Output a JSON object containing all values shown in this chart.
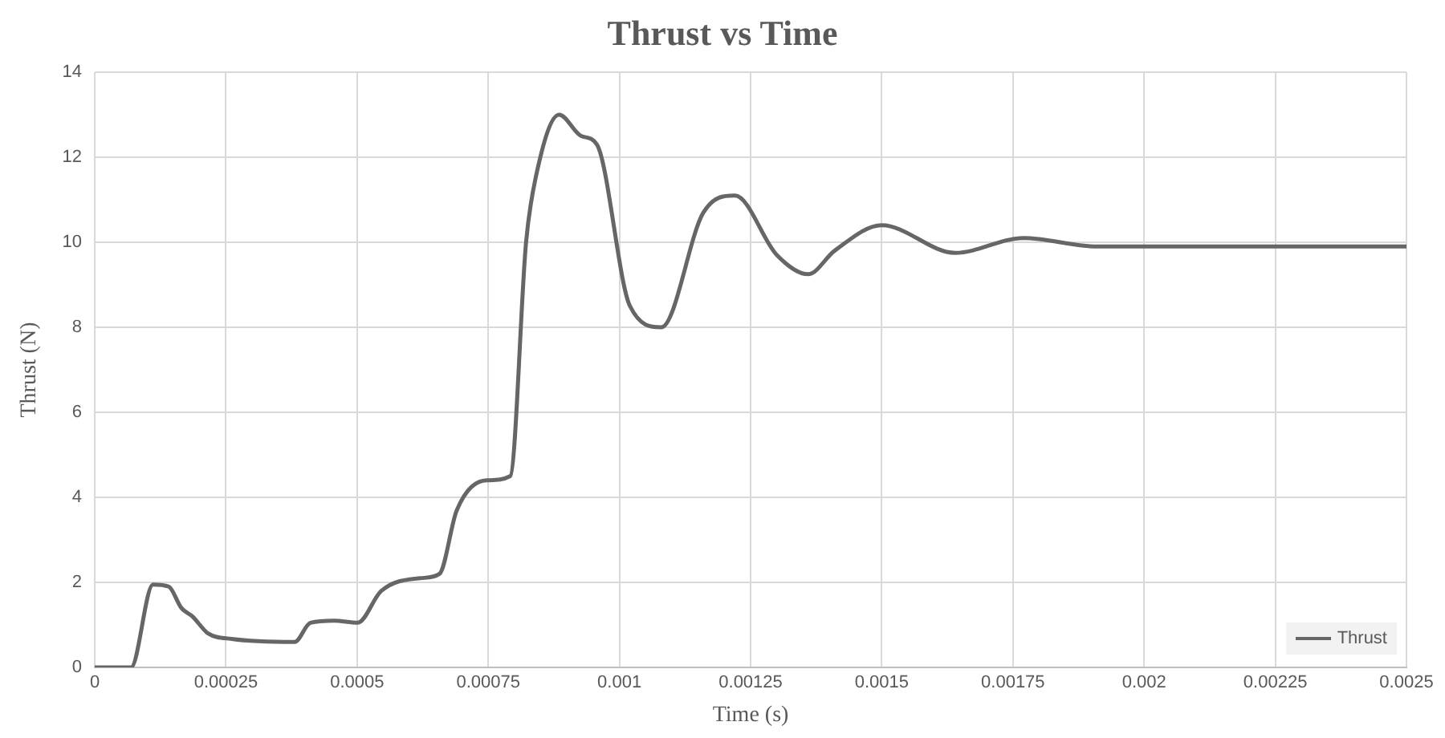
{
  "chart_data": {
    "type": "line",
    "title": "Thrust vs Time",
    "xlabel": "Time (s)",
    "ylabel": "Thrust (N)",
    "x": [
      0,
      6.9e-05,
      0.000111,
      0.000141,
      0.000165,
      0.000186,
      0.000216,
      0.000261,
      0.000381,
      0.000411,
      0.000456,
      0.000501,
      0.000546,
      0.000621,
      0.000657,
      0.00069,
      0.000747,
      0.000792,
      0.000822,
      0.00084,
      0.000885,
      0.000927,
      0.000957,
      0.00102,
      0.00108,
      0.00116,
      0.00122,
      0.0013,
      0.00136,
      0.00141,
      0.0015,
      0.00164,
      0.00177,
      0.00191,
      0.0025
    ],
    "series": [
      {
        "name": "Thrust",
        "color": "#666666",
        "values": [
          0,
          0,
          1.95,
          1.9,
          1.4,
          1.2,
          0.8,
          0.67,
          0.6,
          1.05,
          1.1,
          1.05,
          1.8,
          2.1,
          2.2,
          3.7,
          4.4,
          4.5,
          10,
          11.5,
          13,
          12.5,
          12.3,
          8.5,
          8,
          10.7,
          11.1,
          9.7,
          9.25,
          9.8,
          10.4,
          9.75,
          10.1,
          9.9,
          9.9
        ]
      }
    ],
    "xlim": [
      0,
      0.0025
    ],
    "xticks": [
      0,
      0.00025,
      0.0005,
      0.00075,
      0.001,
      0.00125,
      0.0015,
      0.00175,
      0.002,
      0.00225,
      0.0025
    ],
    "ylim": [
      0,
      14
    ],
    "yticks": [
      0,
      2,
      4,
      6,
      8,
      10,
      12,
      14
    ],
    "grid": true,
    "legend": "bottom right",
    "marker": "none",
    "line_style": "solid"
  }
}
